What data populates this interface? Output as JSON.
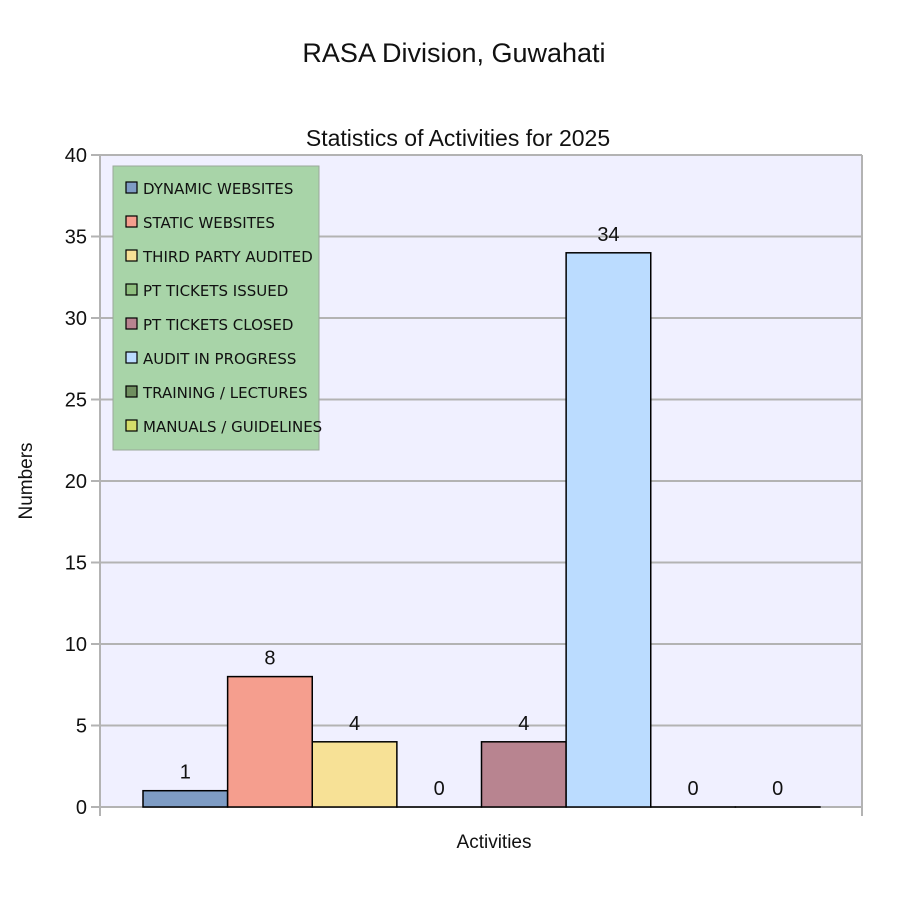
{
  "page_title": "RASA Division, Guwahati",
  "chart_data": {
    "type": "bar",
    "title": "Statistics of Activities for 2025",
    "xlabel": "Activities",
    "ylabel": "Numbers",
    "ylim": [
      0,
      40
    ],
    "yticks": [
      0,
      5,
      10,
      15,
      20,
      25,
      30,
      35,
      40
    ],
    "grid": true,
    "legend_position": "top-left",
    "plot_background": "#f0f0ff",
    "legend_background": "#a8d4a8",
    "series": [
      {
        "name": "DYNAMIC WEBSITES",
        "value": 1,
        "color": "#7e9cc4"
      },
      {
        "name": "STATIC WEBSITES",
        "value": 8,
        "color": "#f59e8e"
      },
      {
        "name": "THIRD PARTY AUDITED",
        "value": 4,
        "color": "#f7e196"
      },
      {
        "name": "PT TICKETS ISSUED",
        "value": 0,
        "color": "#8fbf7f"
      },
      {
        "name": "PT TICKETS CLOSED",
        "value": 4,
        "color": "#b88490"
      },
      {
        "name": "AUDIT IN PROGRESS",
        "value": 34,
        "color": "#bbdcff"
      },
      {
        "name": "TRAINING / LECTURES",
        "value": 0,
        "color": "#6f8f5f"
      },
      {
        "name": "MANUALS / GUIDELINES",
        "value": 0,
        "color": "#d4dd6a"
      }
    ]
  }
}
